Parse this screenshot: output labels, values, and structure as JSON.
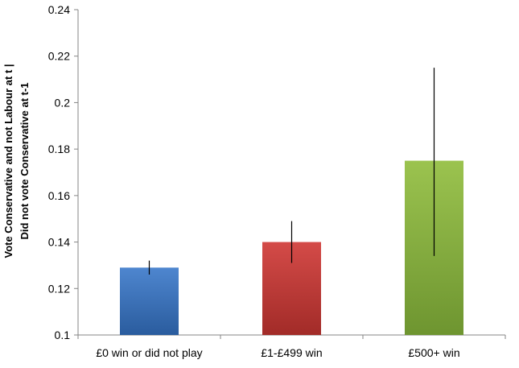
{
  "chart_data": {
    "type": "bar",
    "title": "",
    "xlabel": "",
    "ylabel_lines": [
      "Vote Conservative and not Labour at t |",
      "Did not vote Conservative at t-1"
    ],
    "categories": [
      "£0 win or did not play",
      "£1-£499 win",
      "£500+ win"
    ],
    "values": [
      0.129,
      0.14,
      0.175
    ],
    "error_low": [
      0.126,
      0.131,
      0.134
    ],
    "error_high": [
      0.132,
      0.149,
      0.215
    ],
    "ylim": [
      0.1,
      0.24
    ],
    "yticks": [
      0.1,
      0.12,
      0.14,
      0.16,
      0.18,
      0.2,
      0.22,
      0.24
    ],
    "ytick_labels": [
      "0.1",
      "0.12",
      "0.14",
      "0.16",
      "0.18",
      "0.2",
      "0.22",
      "0.24"
    ],
    "grid": false,
    "legend": "none",
    "colors": {
      "bar_top": [
        "#4e86cf",
        "#d44b48",
        "#9bc34f"
      ],
      "bar_bottom": [
        "#2a5c9e",
        "#a22b28",
        "#6e9530"
      ],
      "axis": "#868686",
      "error_bar": "#000000",
      "text": "#000000"
    }
  }
}
